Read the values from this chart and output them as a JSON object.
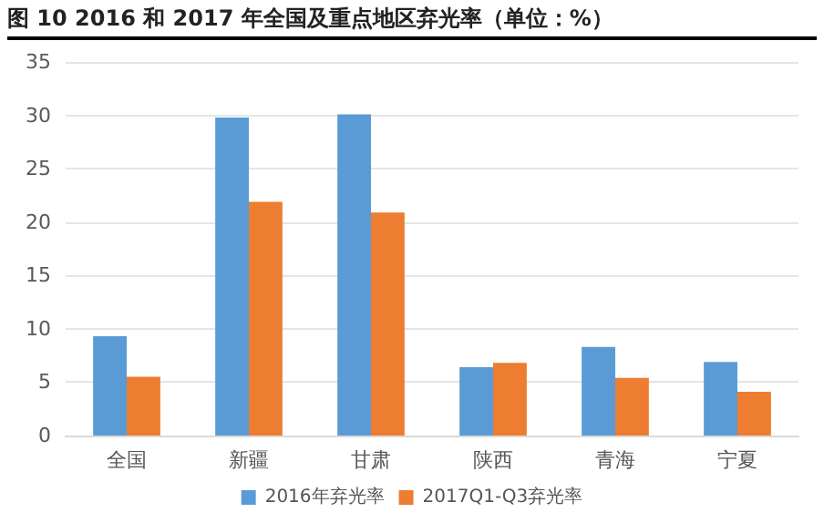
{
  "chart_data": {
    "type": "bar",
    "title": "图 10 2016 和 2017 年全国及重点地区弃光率（单位：%）",
    "categories": [
      "全国",
      "新疆",
      "甘肃",
      "陕西",
      "青海",
      "宁夏"
    ],
    "series": [
      {
        "name": "2016年弃光率",
        "color": "#5b9bd5",
        "values": [
          9.3,
          29.8,
          30.1,
          6.4,
          8.3,
          6.9
        ]
      },
      {
        "name": "2017Q1-Q3弃光率",
        "color": "#ed7d31",
        "values": [
          5.5,
          21.9,
          20.9,
          6.8,
          5.4,
          4.1
        ]
      }
    ],
    "ylim": [
      0,
      35
    ],
    "yticks": [
      0,
      5,
      10,
      15,
      20,
      25,
      30,
      35
    ],
    "grid": "y",
    "legend": "bottom"
  }
}
